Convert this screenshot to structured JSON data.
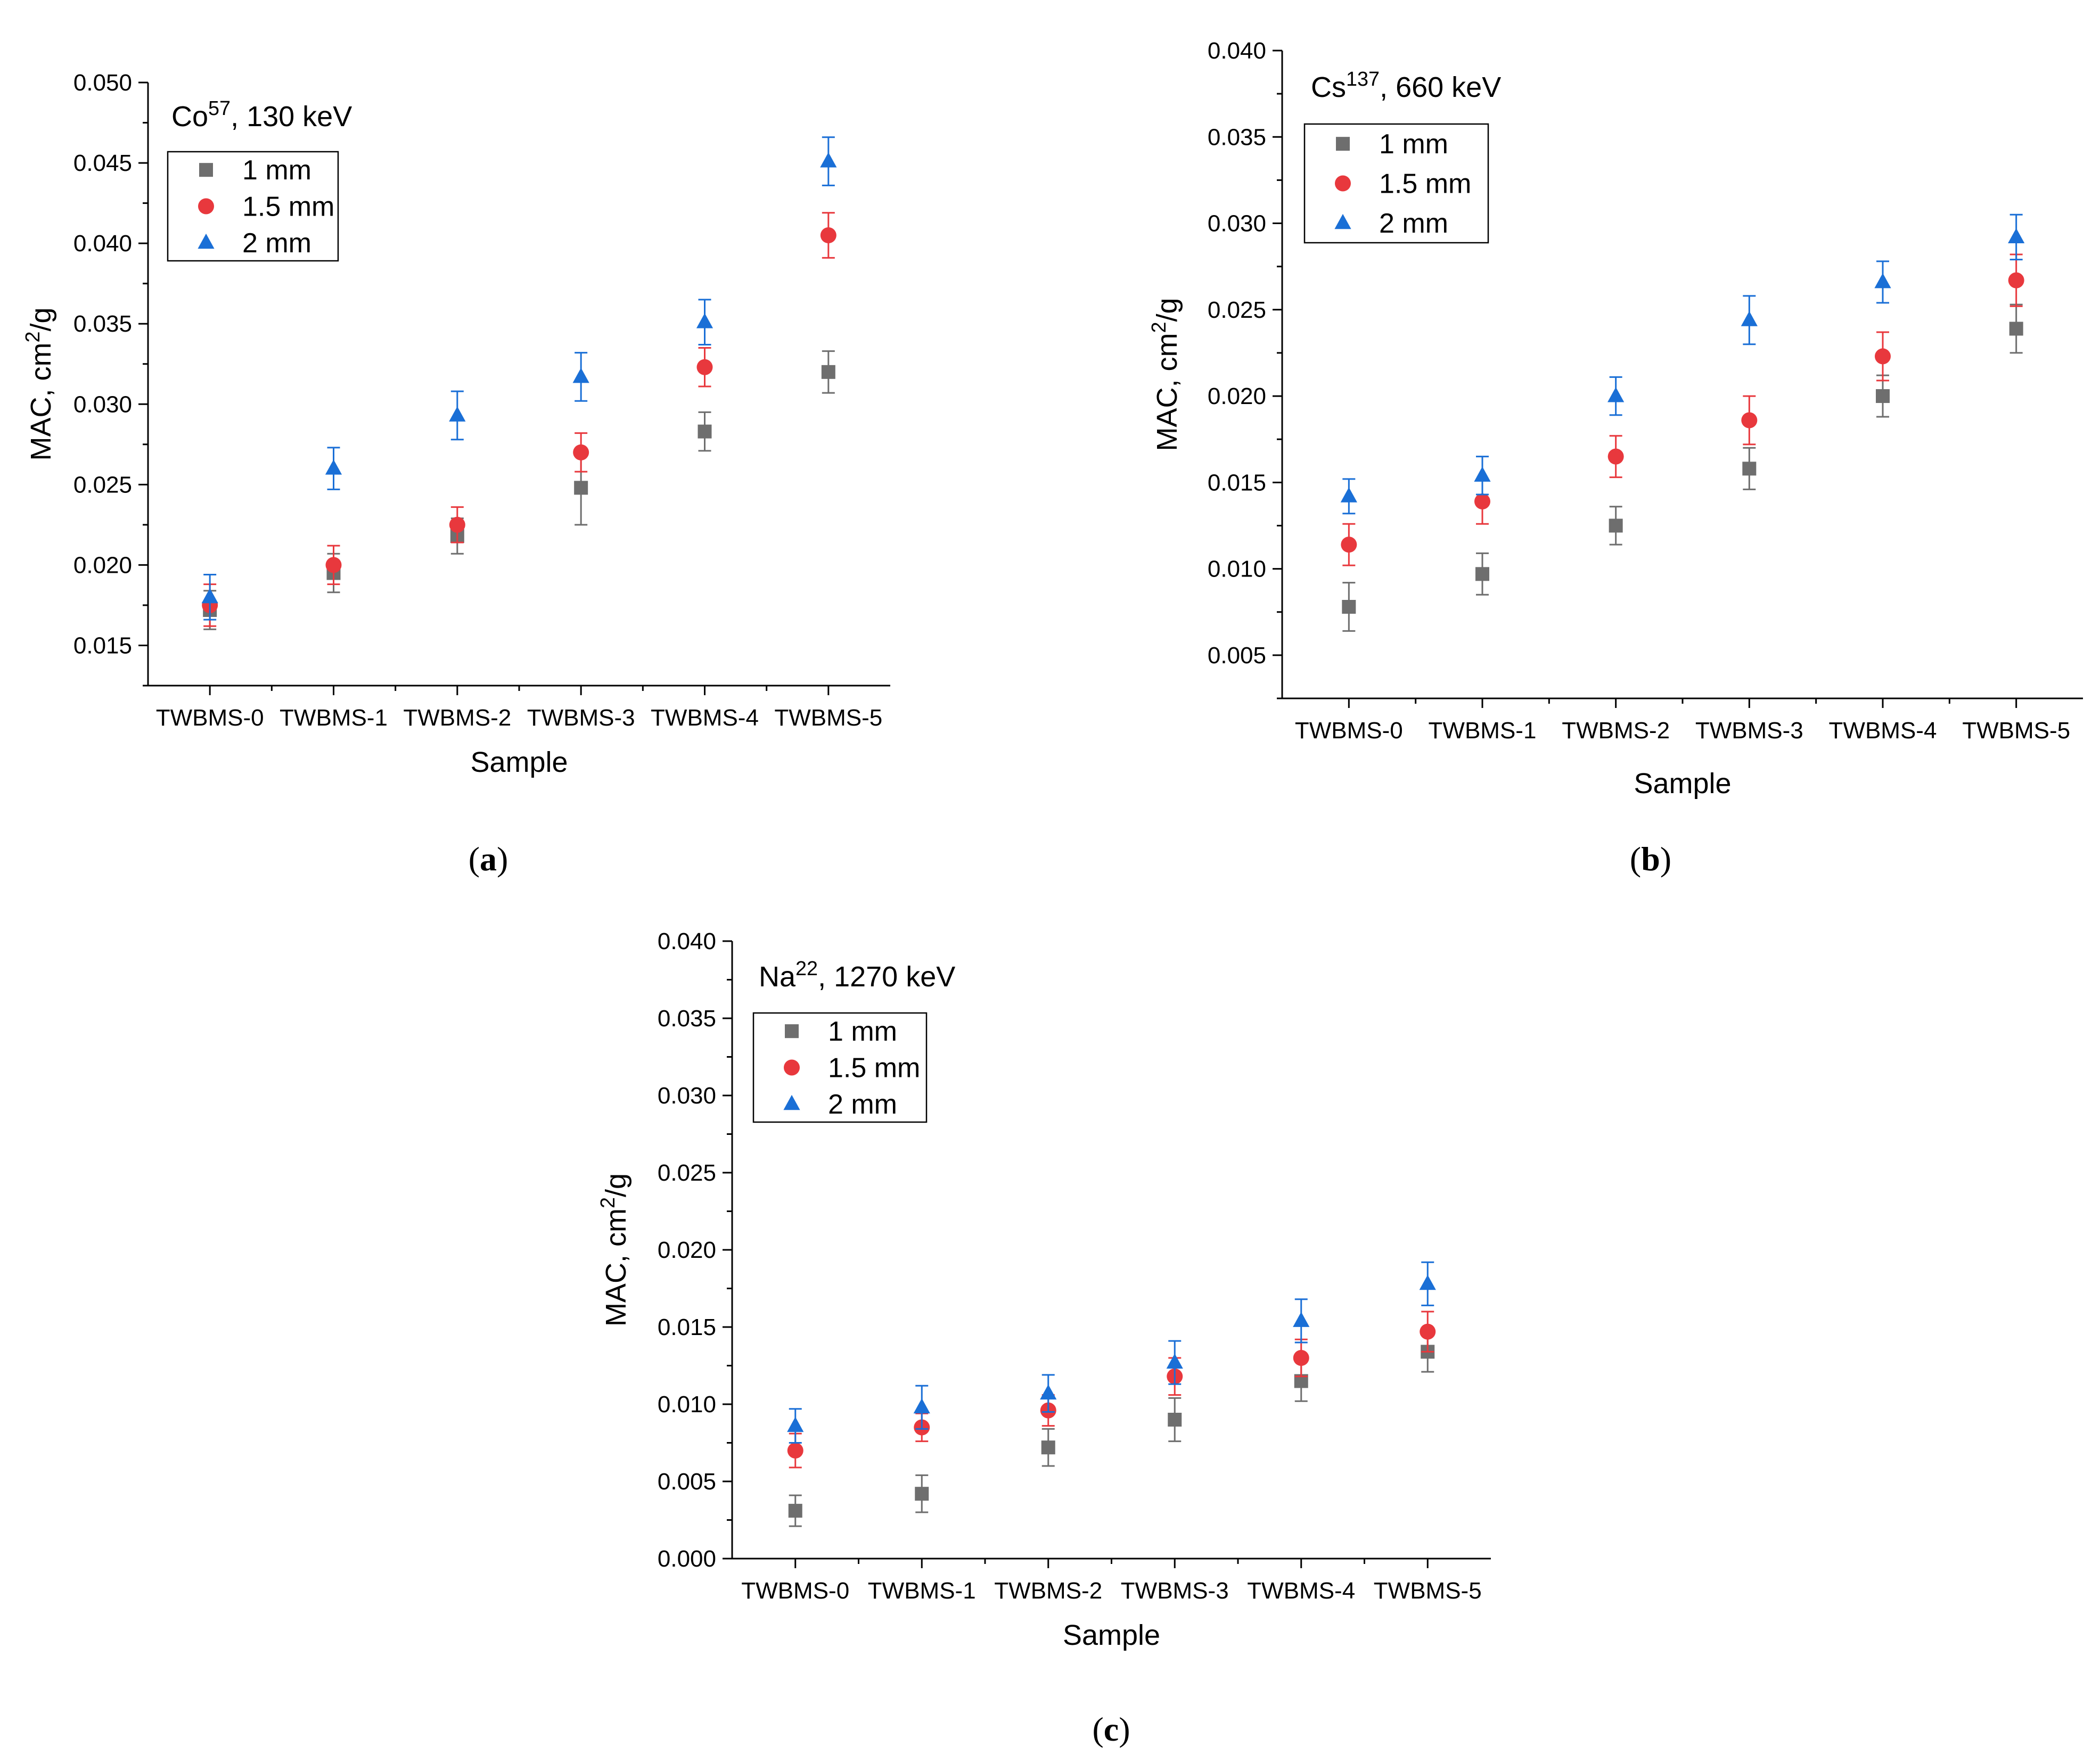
{
  "colors": {
    "1 mm": "#6e6e6e",
    "1.5 mm": "#e8383d",
    "2 mm": "#1a6fd6"
  },
  "markers": {
    "1 mm": "square",
    "1.5 mm": "circle",
    "2 mm": "triangle"
  },
  "chart_data": [
    {
      "type": "scatter",
      "panel_label": "(a)",
      "title": {
        "prefix": "Co",
        "sup": "57",
        "suffix": ", 130 keV"
      },
      "xlabel": "Sample",
      "ylabel": {
        "prefix": "MAC, cm",
        "sup": "2",
        "suffix": "/g"
      },
      "categories": [
        "TWBMS-0",
        "TWBMS-1",
        "TWBMS-2",
        "TWBMS-3",
        "TWBMS-4",
        "TWBMS-5"
      ],
      "ylim": [
        0.0125,
        0.05
      ],
      "yticks": [
        "0.015",
        "0.020",
        "0.025",
        "0.030",
        "0.035",
        "0.040",
        "0.045",
        "0.050"
      ],
      "legend": "top-left",
      "series": [
        {
          "name": "1 mm",
          "values": [
            0.0172,
            0.0195,
            0.0218,
            0.0248,
            0.0283,
            0.032
          ],
          "errors": [
            0.0012,
            0.0012,
            0.0011,
            0.0023,
            0.0012,
            0.0013
          ]
        },
        {
          "name": "1.5 mm",
          "values": [
            0.0175,
            0.02,
            0.0225,
            0.027,
            0.0323,
            0.0405
          ],
          "errors": [
            0.0013,
            0.0012,
            0.0011,
            0.0012,
            0.0012,
            0.0014
          ]
        },
        {
          "name": "2 mm",
          "values": [
            0.018,
            0.026,
            0.0293,
            0.0317,
            0.0351,
            0.0451
          ],
          "errors": [
            0.0014,
            0.0013,
            0.0015,
            0.0015,
            0.0014,
            0.0015
          ]
        }
      ]
    },
    {
      "type": "scatter",
      "panel_label": "(b)",
      "title": {
        "prefix": "Cs",
        "sup": "137",
        "suffix": ", 660 keV"
      },
      "xlabel": "Sample",
      "ylabel": {
        "prefix": "MAC, cm",
        "sup": "2",
        "suffix": "/g"
      },
      "categories": [
        "TWBMS-0",
        "TWBMS-1",
        "TWBMS-2",
        "TWBMS-3",
        "TWBMS-4",
        "TWBMS-5"
      ],
      "ylim": [
        0.0025,
        0.04
      ],
      "yticks": [
        "0.005",
        "0.010",
        "0.015",
        "0.020",
        "0.025",
        "0.030",
        "0.035",
        "0.040"
      ],
      "legend": "top-left",
      "series": [
        {
          "name": "1 mm",
          "values": [
            0.0078,
            0.0097,
            0.0125,
            0.0158,
            0.02,
            0.0239
          ],
          "errors": [
            0.0014,
            0.0012,
            0.0011,
            0.0012,
            0.0012,
            0.0014
          ]
        },
        {
          "name": "1.5 mm",
          "values": [
            0.0114,
            0.0139,
            0.0165,
            0.0186,
            0.0223,
            0.0267
          ],
          "errors": [
            0.0012,
            0.0013,
            0.0012,
            0.0014,
            0.0014,
            0.0015
          ]
        },
        {
          "name": "2 mm",
          "values": [
            0.0142,
            0.0154,
            0.02,
            0.0244,
            0.0266,
            0.0292
          ],
          "errors": [
            0.001,
            0.0011,
            0.0011,
            0.0014,
            0.0012,
            0.0013
          ]
        }
      ]
    },
    {
      "type": "scatter",
      "panel_label": "(c)",
      "title": {
        "prefix": "Na",
        "sup": "22",
        "suffix": ", 1270 keV"
      },
      "xlabel": "Sample",
      "ylabel": {
        "prefix": "MAC, cm",
        "sup": "2",
        "suffix": "/g"
      },
      "categories": [
        "TWBMS-0",
        "TWBMS-1",
        "TWBMS-2",
        "TWBMS-3",
        "TWBMS-4",
        "TWBMS-5"
      ],
      "ylim": [
        0.0,
        0.04
      ],
      "yticks": [
        "0.000",
        "0.005",
        "0.010",
        "0.015",
        "0.020",
        "0.025",
        "0.030",
        "0.035",
        "0.040"
      ],
      "legend": "top-left",
      "series": [
        {
          "name": "1 mm",
          "values": [
            0.0031,
            0.0042,
            0.0072,
            0.009,
            0.0115,
            0.0134
          ],
          "errors": [
            0.001,
            0.0012,
            0.0012,
            0.0014,
            0.0013,
            0.0013
          ]
        },
        {
          "name": "1.5 mm",
          "values": [
            0.007,
            0.0085,
            0.0096,
            0.0118,
            0.013,
            0.0147
          ],
          "errors": [
            0.0011,
            0.0009,
            0.001,
            0.0012,
            0.0012,
            0.0013
          ]
        },
        {
          "name": "2 mm",
          "values": [
            0.0086,
            0.0098,
            0.0107,
            0.0127,
            0.0154,
            0.0178
          ],
          "errors": [
            0.0011,
            0.0014,
            0.0012,
            0.0014,
            0.0014,
            0.0014
          ]
        }
      ]
    }
  ]
}
